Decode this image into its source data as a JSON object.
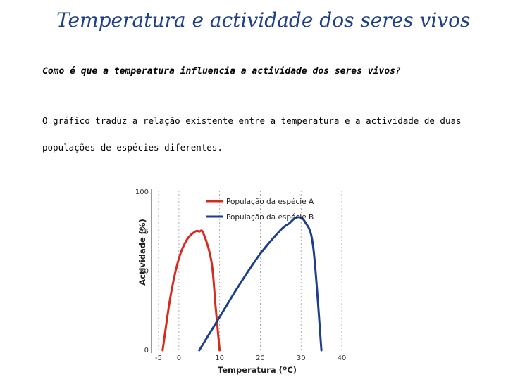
{
  "page": {
    "title": "Temperatura e actividade dos seres vivos",
    "question": "Como é que a temperatura influencia a actividade dos seres vivos?",
    "paragraph_line1": "O gráfico traduz a relação existente entre a temperatura e a actividade de duas",
    "paragraph_line2": "populações de espécies diferentes."
  },
  "chart_data": {
    "type": "line",
    "xlabel": "Temperatura (ºC)",
    "ylabel": "Actividade (%)",
    "xlim": [
      -5,
      40
    ],
    "ylim": [
      0,
      100
    ],
    "x_ticks": [
      -5,
      0,
      10,
      20,
      30,
      40
    ],
    "y_ticks": [
      0,
      50,
      75,
      100
    ],
    "x_tick_labels": [
      "-5",
      "0",
      "10",
      "20",
      "30",
      "40"
    ],
    "y_tick_labels": [
      "0",
      "50",
      "75",
      "100"
    ],
    "grid": "vertical dashed at x ticks",
    "legend_position": "top",
    "series": [
      {
        "name": "População da espécie A",
        "color": "#d62b1f",
        "x": [
          -4,
          -2,
          0,
          2,
          4,
          5,
          6,
          8,
          9,
          10
        ],
        "y": [
          0,
          35,
          58,
          70,
          75,
          75,
          74,
          56,
          28,
          0
        ]
      },
      {
        "name": "População da espécie B",
        "color": "#1c3f8c",
        "x": [
          5,
          10,
          15,
          20,
          25,
          27,
          29,
          31,
          33,
          35
        ],
        "y": [
          0,
          21,
          42,
          61,
          76,
          80,
          84,
          81,
          65,
          0
        ]
      }
    ]
  }
}
